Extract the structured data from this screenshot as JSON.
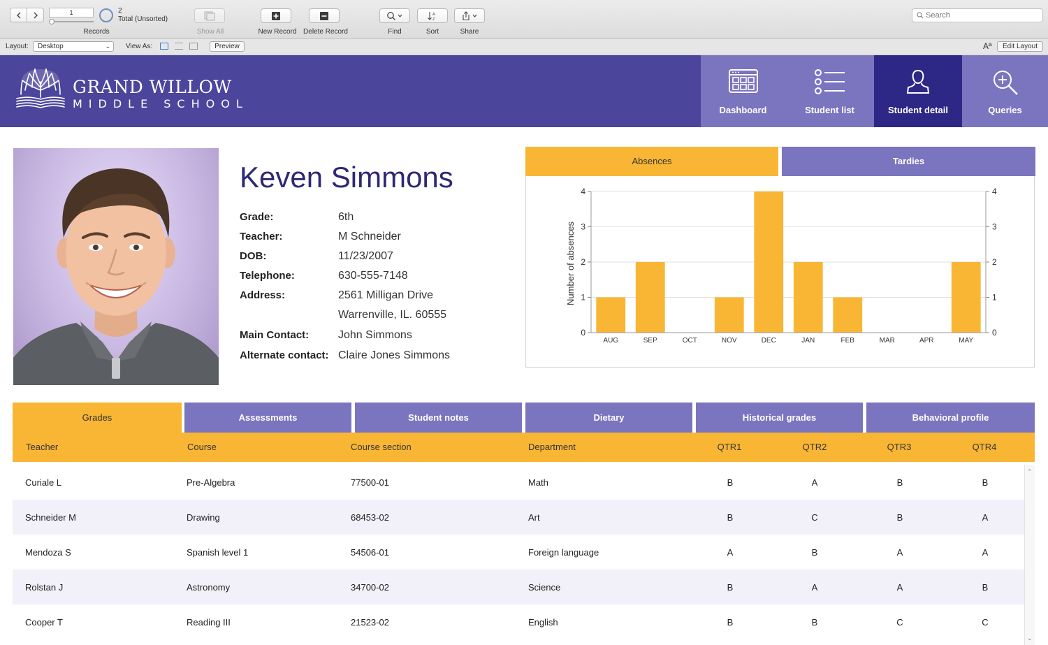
{
  "toolbar": {
    "record_number": "1",
    "total_count": "2",
    "total_label": "Total (Unsorted)",
    "records_label": "Records",
    "show_all_label": "Show All",
    "new_record_label": "New Record",
    "delete_record_label": "Delete Record",
    "find_label": "Find",
    "sort_label": "Sort",
    "share_label": "Share",
    "search_placeholder": "Search"
  },
  "layoutbar": {
    "layout_label": "Layout:",
    "layout_value": "Desktop",
    "view_as_label": "View As:",
    "preview_label": "Preview",
    "font_size_glyph": "Aª",
    "edit_layout_label": "Edit Layout"
  },
  "brand": {
    "title": "GRAND WILLOW",
    "subtitle": "MIDDLE SCHOOL"
  },
  "nav": [
    {
      "label": "Dashboard",
      "icon": "dashboard-icon"
    },
    {
      "label": "Student list",
      "icon": "list-icon"
    },
    {
      "label": "Student detail",
      "icon": "person-icon",
      "active": true
    },
    {
      "label": "Queries",
      "icon": "magnify-plus-icon"
    }
  ],
  "student": {
    "name": "Keven Simmons",
    "fields": [
      {
        "label": "Grade:",
        "value": "6th"
      },
      {
        "label": "Teacher:",
        "value": "M Schneider"
      },
      {
        "label": "DOB:",
        "value": "11/23/2007"
      },
      {
        "label": "Telephone:",
        "value": "630-555-7148"
      },
      {
        "label": "Address:",
        "value": "2561 Milligan Drive"
      },
      {
        "label": "",
        "value": "Warrenville, IL. 60555"
      },
      {
        "label": "Main Contact:",
        "value": "John Simmons"
      },
      {
        "label": "Alternate contact:",
        "value": "Claire Jones Simmons"
      }
    ]
  },
  "chart_tabs": {
    "absences": "Absences",
    "tardies": "Tardies"
  },
  "chart_data": {
    "type": "bar",
    "categories": [
      "AUG",
      "SEP",
      "OCT",
      "NOV",
      "DEC",
      "JAN",
      "FEB",
      "MAR",
      "APR",
      "MAY"
    ],
    "values": [
      1,
      2,
      0,
      1,
      4,
      2,
      1,
      0,
      0,
      2
    ],
    "ylabel": "Number of absences",
    "ylim": [
      0,
      4
    ],
    "yticks": [
      0,
      1,
      2,
      3,
      4
    ],
    "grid": true,
    "bar_color": "#f9b634"
  },
  "section_tabs": [
    {
      "label": "Grades",
      "active": true
    },
    {
      "label": "Assessments"
    },
    {
      "label": "Student notes"
    },
    {
      "label": "Dietary"
    },
    {
      "label": "Historical grades"
    },
    {
      "label": "Behavioral profile"
    }
  ],
  "grades": {
    "columns": [
      "Teacher",
      "Course",
      "Course section",
      "Department",
      "QTR1",
      "QTR2",
      "QTR3",
      "QTR4"
    ],
    "rows": [
      [
        "Curiale L",
        "Pre-Algebra",
        "77500-01",
        "Math",
        "B",
        "A",
        "B",
        "B"
      ],
      [
        "Schneider M",
        "Drawing",
        "68453-02",
        "Art",
        "B",
        "C",
        "B",
        "A"
      ],
      [
        "Mendoza S",
        "Spanish level 1",
        "54506-01",
        "Foreign language",
        "A",
        "B",
        "A",
        "A"
      ],
      [
        "Rolstan J",
        "Astronomy",
        "34700-02",
        "Science",
        "B",
        "A",
        "A",
        "B"
      ],
      [
        "Cooper T",
        "Reading III",
        "21523-02",
        "English",
        "B",
        "B",
        "C",
        "C"
      ]
    ]
  },
  "colors": {
    "header_purple": "#4b459b",
    "tab_purple": "#7b74bf",
    "active_purple": "#2d2786",
    "accent_orange": "#f9b634"
  }
}
